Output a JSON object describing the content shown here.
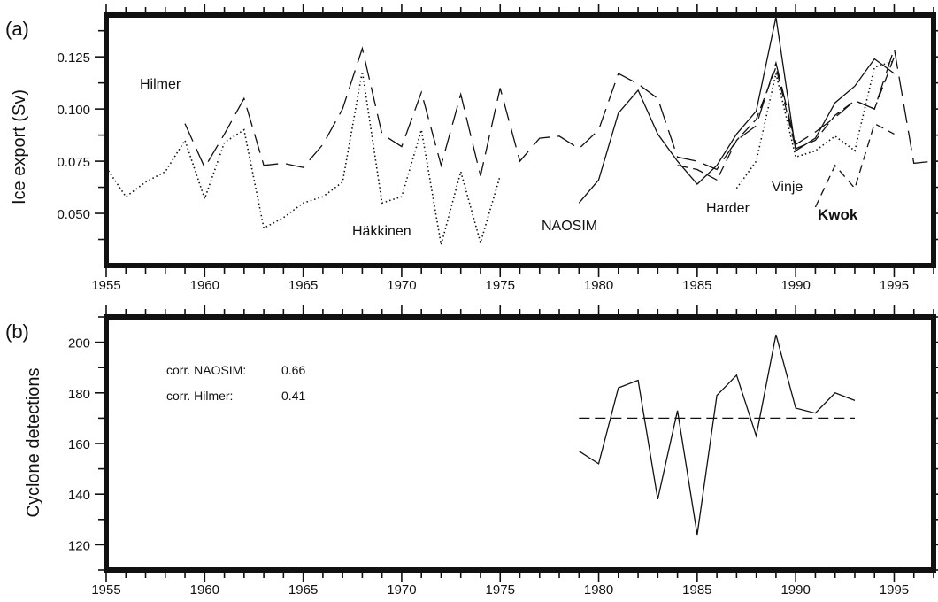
{
  "chart_data": [
    {
      "type": "line",
      "panel_label": "(a)",
      "ylabel": "Ice export (Sv)",
      "xlim": [
        1955,
        1997
      ],
      "ylim": [
        0.025,
        0.145
      ],
      "x_ticks": [
        1955,
        1960,
        1965,
        1970,
        1975,
        1980,
        1985,
        1990,
        1995
      ],
      "y_ticks": [
        0.05,
        0.075,
        0.1,
        0.125
      ],
      "y_tick_labels": [
        "0.050",
        "0.075",
        "0.100",
        "0.125"
      ],
      "series": [
        {
          "name": "Hilmer",
          "style": "long-dash",
          "x": [
            1959,
            1960,
            1961,
            1962,
            1963,
            1964,
            1965,
            1966,
            1967,
            1968,
            1969,
            1970,
            1971,
            1972,
            1973,
            1974,
            1975,
            1976,
            1977,
            1978,
            1979,
            1980,
            1981,
            1982,
            1983,
            1984,
            1985,
            1986,
            1987,
            1988,
            1989,
            1990,
            1991,
            1992,
            1993,
            1994,
            1995,
            1996,
            1997
          ],
          "y": [
            0.093,
            0.072,
            0.088,
            0.105,
            0.073,
            0.074,
            0.072,
            0.083,
            0.1,
            0.129,
            0.088,
            0.082,
            0.108,
            0.073,
            0.107,
            0.068,
            0.11,
            0.075,
            0.086,
            0.087,
            0.081,
            0.09,
            0.117,
            0.112,
            0.105,
            0.077,
            0.075,
            0.071,
            0.085,
            0.092,
            0.122,
            0.083,
            0.089,
            0.096,
            0.104,
            0.1,
            0.129,
            0.074,
            0.075
          ]
        },
        {
          "name": "Häkkinen",
          "style": "dotted",
          "x": [
            1955,
            1956,
            1957,
            1958,
            1959,
            1960,
            1961,
            1962,
            1963,
            1964,
            1965,
            1966,
            1967,
            1968,
            1969,
            1970,
            1971,
            1972,
            1973,
            1974,
            1975
          ],
          "y": [
            0.072,
            0.058,
            0.065,
            0.07,
            0.085,
            0.057,
            0.084,
            0.09,
            0.043,
            0.048,
            0.055,
            0.058,
            0.065,
            0.118,
            0.055,
            0.058,
            0.09,
            0.035,
            0.07,
            0.036,
            0.068
          ]
        },
        {
          "name": "NAOSIM",
          "style": "solid",
          "x": [
            1979,
            1980,
            1981,
            1982,
            1983,
            1984,
            1985,
            1986,
            1987,
            1988,
            1989,
            1990,
            1991,
            1992,
            1993,
            1994,
            1995
          ],
          "y": [
            0.055,
            0.066,
            0.098,
            0.109,
            0.088,
            0.075,
            0.064,
            0.073,
            0.088,
            0.099,
            0.144,
            0.08,
            0.086,
            0.103,
            0.111,
            0.124,
            0.117
          ]
        },
        {
          "name": "Harder",
          "style": "dash",
          "x": [
            1984,
            1985,
            1986,
            1987,
            1988,
            1989,
            1990,
            1991,
            1992,
            1993,
            1994,
            1995
          ],
          "y": [
            0.073,
            0.071,
            0.066,
            0.085,
            0.095,
            0.12,
            0.081,
            0.085,
            0.097,
            0.104,
            0.1,
            0.125
          ]
        },
        {
          "name": "Vinje",
          "style": "dotted",
          "x": [
            1987,
            1988,
            1989,
            1990,
            1991,
            1992,
            1993,
            1994,
            1995
          ],
          "y": [
            0.062,
            0.075,
            0.117,
            0.077,
            0.08,
            0.087,
            0.08,
            0.12,
            0.123
          ]
        },
        {
          "name": "Kwok",
          "style": "short-dash",
          "x": [
            1991,
            1992,
            1993,
            1994,
            1995
          ],
          "y": [
            0.053,
            0.073,
            0.062,
            0.093,
            0.088
          ]
        }
      ],
      "labels": {
        "hilmer": "Hilmer",
        "hakkinen": "Häkkinen",
        "naosim": "NAOSIM",
        "harder": "Harder",
        "vinje": "Vinje",
        "kwok": "Kwok"
      }
    },
    {
      "type": "line",
      "panel_label": "(b)",
      "ylabel": "Cyclone detections",
      "xlim": [
        1955,
        1997
      ],
      "ylim": [
        110,
        210
      ],
      "x_ticks": [
        1955,
        1960,
        1965,
        1970,
        1975,
        1980,
        1985,
        1990,
        1995
      ],
      "y_ticks": [
        120,
        140,
        160,
        180,
        200
      ],
      "series": [
        {
          "style": "solid",
          "x": [
            1979,
            1980,
            1981,
            1982,
            1983,
            1984,
            1985,
            1986,
            1987,
            1988,
            1989,
            1990,
            1991,
            1992,
            1993
          ],
          "y": [
            157,
            152,
            182,
            185,
            138,
            173,
            124,
            179,
            187,
            163,
            203,
            174,
            172,
            180,
            177
          ]
        },
        {
          "style": "dash",
          "x": [
            1979,
            1993
          ],
          "y": [
            170,
            170
          ]
        }
      ],
      "annotations": {
        "corr_naosim_label": "corr. NAOSIM:",
        "corr_naosim_value": "0.66",
        "corr_hilmer_label": "corr. Hilmer:",
        "corr_hilmer_value": "0.41"
      }
    }
  ]
}
